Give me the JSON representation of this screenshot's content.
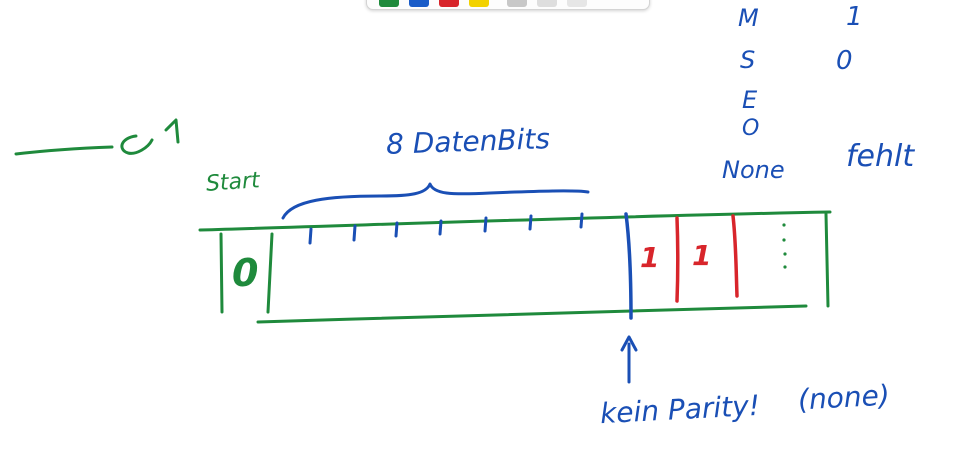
{
  "toolbar": {
    "pens": [
      {
        "name": "green-pen-icon",
        "color": "#1f8a3c"
      },
      {
        "name": "blue-pen-icon",
        "color": "#1a5cc8"
      },
      {
        "name": "red-pen-icon",
        "color": "#d8252b"
      },
      {
        "name": "yellow-pen-icon",
        "color": "#f2d200"
      },
      {
        "name": "grey-pen-icon",
        "color": "#c8c8c8"
      },
      {
        "name": "light-grey-pen-icon",
        "color": "#dedede"
      },
      {
        "name": "eraser-icon",
        "color": "#e6e6e6"
      }
    ]
  },
  "colors": {
    "green": "#1f8a3c",
    "blue": "#1a4fb5",
    "red": "#d8252b"
  },
  "annotations": {
    "arrow_target": "1",
    "start_label": "Start",
    "start_bit": "0",
    "data_bits_label": "8 DatenBits",
    "parity_bit_1": "1",
    "parity_bit_2": "1",
    "no_parity_label": "kein Parity!",
    "no_parity_note": "(none)"
  },
  "parity_table": {
    "modes": [
      "M",
      "S",
      "E",
      "O",
      "None"
    ],
    "values": [
      "1",
      "0"
    ],
    "none_value": "fehlt"
  }
}
